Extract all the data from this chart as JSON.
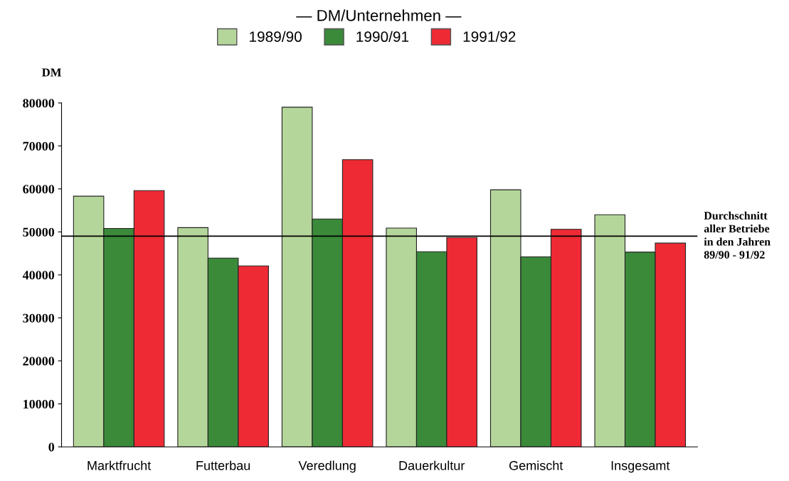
{
  "chart_data": {
    "type": "bar",
    "title": "— DM/Unternehmen —",
    "ylabel": "DM",
    "categories": [
      "Marktfrucht",
      "Futterbau",
      "Veredlung",
      "Dauerkultur",
      "Gemischt",
      "Insgesamt"
    ],
    "series": [
      {
        "name": "1989/90",
        "color": "#b5d69a",
        "values": [
          58300,
          51000,
          79000,
          50900,
          59800,
          54000
        ]
      },
      {
        "name": "1990/91",
        "color": "#3a8a3a",
        "values": [
          50800,
          43900,
          53000,
          45400,
          44200,
          45300
        ]
      },
      {
        "name": "1991/92",
        "color": "#ee2b35",
        "values": [
          59600,
          42100,
          66800,
          48700,
          50600,
          47400
        ]
      }
    ],
    "ylim": [
      0,
      80000
    ],
    "yticks": [
      0,
      10000,
      20000,
      30000,
      40000,
      50000,
      60000,
      70000,
      80000
    ],
    "ref_lines": [
      {
        "axis": "y",
        "value": 49000,
        "label": "Durchschnitt\naller Betriebe\nin den Jahren\n89/90 - 91/92",
        "color": "#000000"
      }
    ],
    "legend": "top",
    "grid": false
  }
}
